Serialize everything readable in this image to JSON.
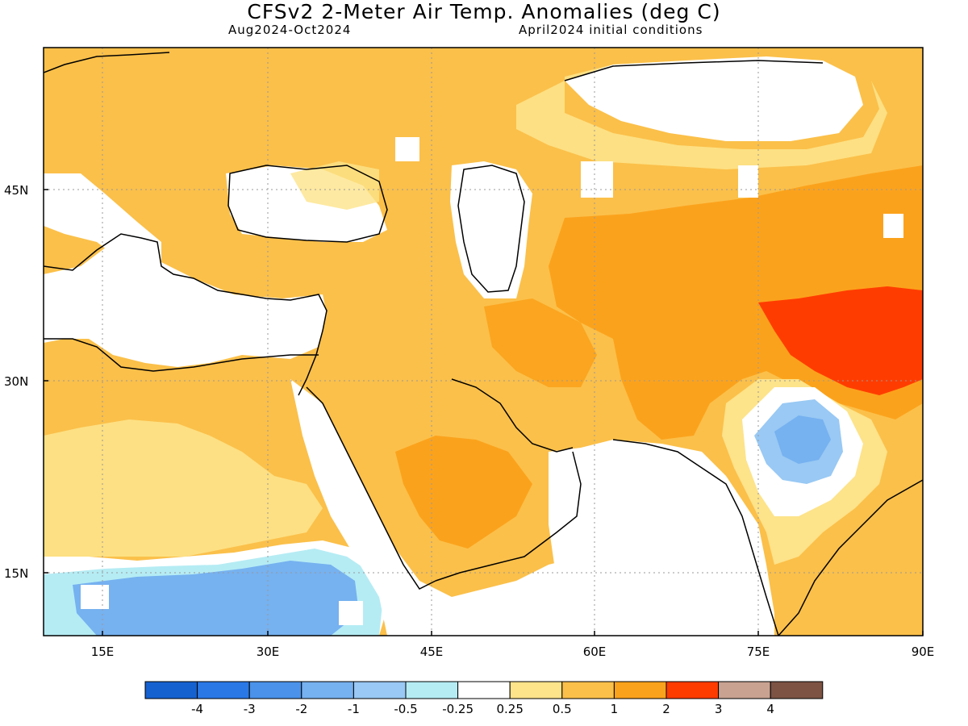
{
  "header": {
    "title": "CFSv2 2-Meter Air Temp. Anomalies (deg C)",
    "period": "Aug2024-Oct2024",
    "initial_conditions": "April2024 initial conditions"
  },
  "axes": {
    "lat_labels": [
      "45N",
      "30N",
      "15N"
    ],
    "lon_labels": [
      "15E",
      "30E",
      "45E",
      "60E",
      "75E",
      "90E"
    ]
  },
  "colorbar": {
    "colors": [
      "#1561cf",
      "#2a78e6",
      "#4a92ea",
      "#76b1f0",
      "#99c9f4",
      "#b5ecf4",
      "#ffffff",
      "#fde38a",
      "#fbc04a",
      "#fba21c",
      "#ff3c00",
      "#c9a292",
      "#7d5343"
    ],
    "tick_labels": [
      "-4",
      "-3",
      "-2",
      "-1",
      "-0.5",
      "-0.25",
      "0.25",
      "0.5",
      "1",
      "2",
      "3",
      "4"
    ]
  },
  "legend_colors": {
    "neutral": "#ffffff",
    "light_warm": "#fde38a",
    "warm": "#fbc04a",
    "warmer": "#fba21c",
    "hot": "#ff3c00",
    "light_cool": "#b5ecf4",
    "cool": "#99c9f4",
    "cooler": "#76b1f0"
  }
}
